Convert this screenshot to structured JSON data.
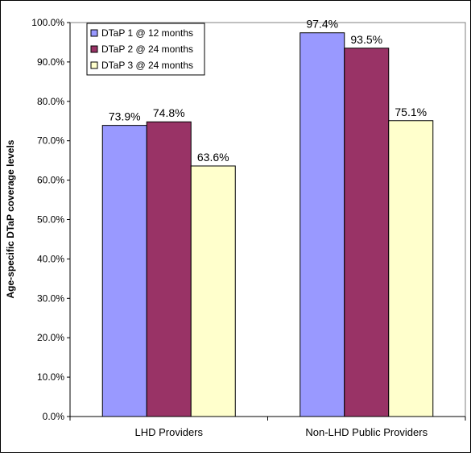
{
  "chart_data": {
    "type": "bar",
    "title": "",
    "xlabel": "",
    "ylabel": "Age-specific DTaP coverage levels",
    "ylim": [
      0,
      100
    ],
    "ytick_step": 10,
    "ytick_format": "percent_1dp",
    "grid": false,
    "legend_position": "top-left",
    "categories": [
      "LHD Providers",
      "Non-LHD Public Providers"
    ],
    "series": [
      {
        "name": "DTaP 1 @ 12 months",
        "color": "#9999ff",
        "values": [
          73.9,
          97.4
        ],
        "labels": [
          "73.9%",
          "97.4%"
        ]
      },
      {
        "name": "DTaP 2 @ 24 months",
        "color": "#993366",
        "values": [
          74.8,
          93.5
        ],
        "labels": [
          "74.8%",
          "93.5%"
        ]
      },
      {
        "name": "DTaP 3 @ 24 months",
        "color": "#ffffcc",
        "values": [
          63.6,
          75.1
        ],
        "labels": [
          "63.6%",
          "75.1%"
        ]
      }
    ]
  }
}
